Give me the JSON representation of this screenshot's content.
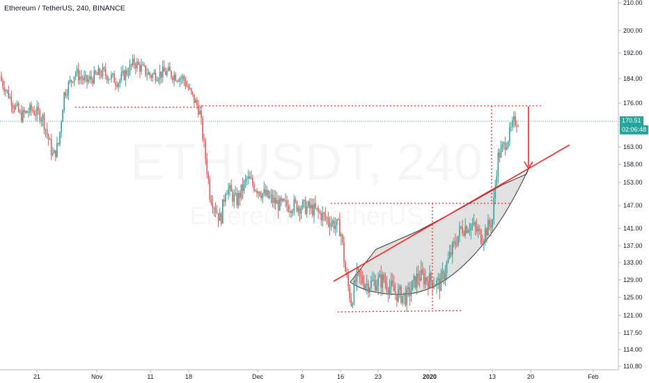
{
  "header": {
    "title": "Ethereum / TetherUS, 240, BINANCE"
  },
  "watermark": {
    "main": "ETHUSDT, 240",
    "sub": "Ethereum / TetherUS"
  },
  "price_tags": {
    "last_price": "170.51",
    "countdown": "02:06:48"
  },
  "colors": {
    "up": "#26a69a",
    "down": "#ef5350",
    "annotation": "#ff2020",
    "last_price_line": "#26a69a",
    "axis_text": "#131722",
    "cup_fill": "#c8c8c8",
    "cup_stroke": "#333333"
  },
  "chart_data": {
    "type": "candlestick",
    "y_axis_ticks": [
      "210.00",
      "200.00",
      "192.00",
      "184.00",
      "176.00",
      "170.51",
      "163.00",
      "158.00",
      "153.00",
      "147.00",
      "141.00",
      "137.00",
      "133.00",
      "129.00",
      "125.00",
      "121.00",
      "117.50",
      "114.00",
      "110.80"
    ],
    "x_axis_ticks": [
      "21",
      "Nov",
      "11",
      "18",
      "Dec",
      "9",
      "16",
      "23",
      "2020",
      "13",
      "20",
      "Feb"
    ],
    "price_path": [
      {
        "x": "Oct 14",
        "y": 185
      },
      {
        "x": "Oct 16",
        "y": 178
      },
      {
        "x": "Oct 18",
        "y": 172
      },
      {
        "x": "Oct 20",
        "y": 174
      },
      {
        "x": "Oct 22",
        "y": 172
      },
      {
        "x": "Oct 24",
        "y": 160
      },
      {
        "x": "Oct 25",
        "y": 164
      },
      {
        "x": "Oct 26",
        "y": 179
      },
      {
        "x": "Oct 28",
        "y": 186
      },
      {
        "x": "Oct 30",
        "y": 183
      },
      {
        "x": "Nov 2",
        "y": 186
      },
      {
        "x": "Nov 5",
        "y": 183
      },
      {
        "x": "Nov 8",
        "y": 189
      },
      {
        "x": "Nov 11",
        "y": 185
      },
      {
        "x": "Nov 14",
        "y": 186
      },
      {
        "x": "Nov 17",
        "y": 184
      },
      {
        "x": "Nov 19",
        "y": 177
      },
      {
        "x": "Nov 20",
        "y": 174
      },
      {
        "x": "Nov 22",
        "y": 150
      },
      {
        "x": "Nov 24",
        "y": 143
      },
      {
        "x": "Nov 25",
        "y": 152
      },
      {
        "x": "Nov 27",
        "y": 148
      },
      {
        "x": "Nov 29",
        "y": 154
      },
      {
        "x": "Dec 2",
        "y": 150
      },
      {
        "x": "Dec 5",
        "y": 147
      },
      {
        "x": "Dec 8",
        "y": 147
      },
      {
        "x": "Dec 11",
        "y": 146
      },
      {
        "x": "Dec 14",
        "y": 143
      },
      {
        "x": "Dec 16",
        "y": 141
      },
      {
        "x": "Dec 17",
        "y": 130
      },
      {
        "x": "Dec 18",
        "y": 124
      },
      {
        "x": "Dec 19",
        "y": 130
      },
      {
        "x": "Dec 21",
        "y": 128
      },
      {
        "x": "Dec 24",
        "y": 129
      },
      {
        "x": "Dec 26",
        "y": 126
      },
      {
        "x": "Dec 28",
        "y": 125
      },
      {
        "x": "Dec 30",
        "y": 130
      },
      {
        "x": "Jan 1",
        "y": 129
      },
      {
        "x": "Jan 3",
        "y": 128
      },
      {
        "x": "Jan 5",
        "y": 135
      },
      {
        "x": "Jan 7",
        "y": 141
      },
      {
        "x": "Jan 9",
        "y": 142
      },
      {
        "x": "Jan 11",
        "y": 139
      },
      {
        "x": "Jan 13",
        "y": 143
      },
      {
        "x": "Jan 14",
        "y": 160
      },
      {
        "x": "Jan 15",
        "y": 163
      },
      {
        "x": "Jan 16",
        "y": 166
      },
      {
        "x": "Jan 17",
        "y": 170.51
      }
    ],
    "annotations": {
      "resistance_level": 174.5,
      "breakout_level": 147,
      "low_level": 122,
      "trendline": "rising line from ~128.5 (Dec 16) to ~162.5 (Jan 27)",
      "pattern": "cup",
      "arrow_target": 156.5
    }
  }
}
